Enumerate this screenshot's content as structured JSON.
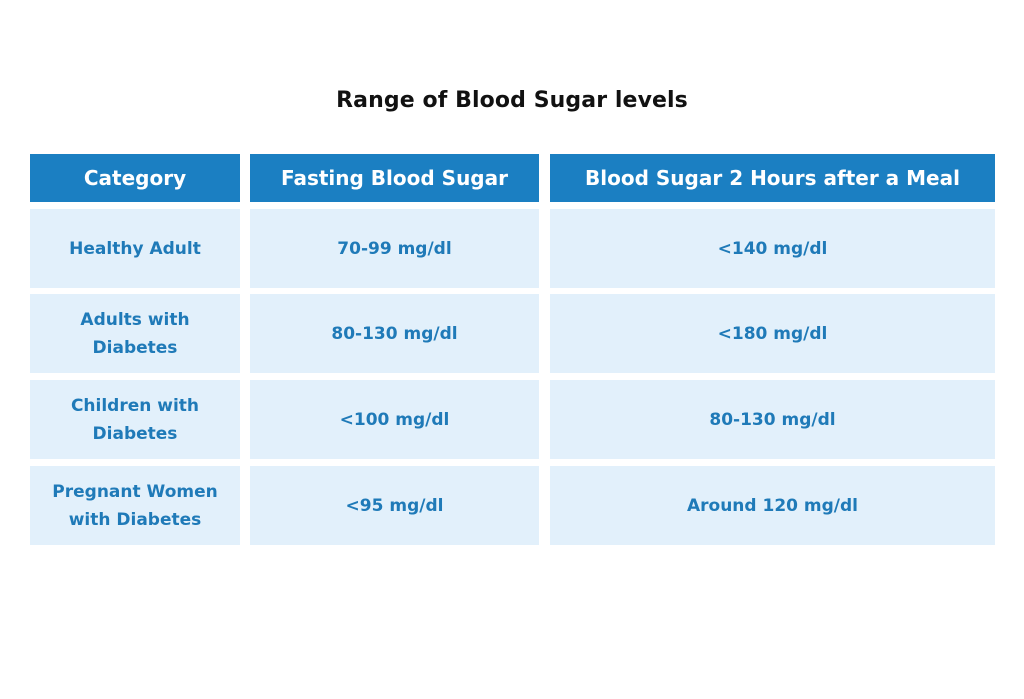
{
  "title": "Range of Blood Sugar levels",
  "table": {
    "headers": [
      "Category",
      "Fasting Blood Sugar",
      "Blood Sugar 2 Hours after a Meal"
    ],
    "rows": [
      [
        "Healthy Adult",
        "70-99 mg/dl",
        "<140 mg/dl"
      ],
      [
        "Adults with Diabetes",
        "80-130 mg/dl",
        "<180 mg/dl"
      ],
      [
        "Children with Diabetes",
        "<100 mg/dl",
        "80-130 mg/dl"
      ],
      [
        "Pregnant Women with Diabetes",
        "<95 mg/dl",
        "Around 120 mg/dl"
      ]
    ]
  },
  "colors": {
    "header_bg": "#1b7fc2",
    "header_text": "#ffffff",
    "cell_bg": "#e2f0fb",
    "cell_text": "#1f7ab8",
    "title_text": "#111111"
  }
}
